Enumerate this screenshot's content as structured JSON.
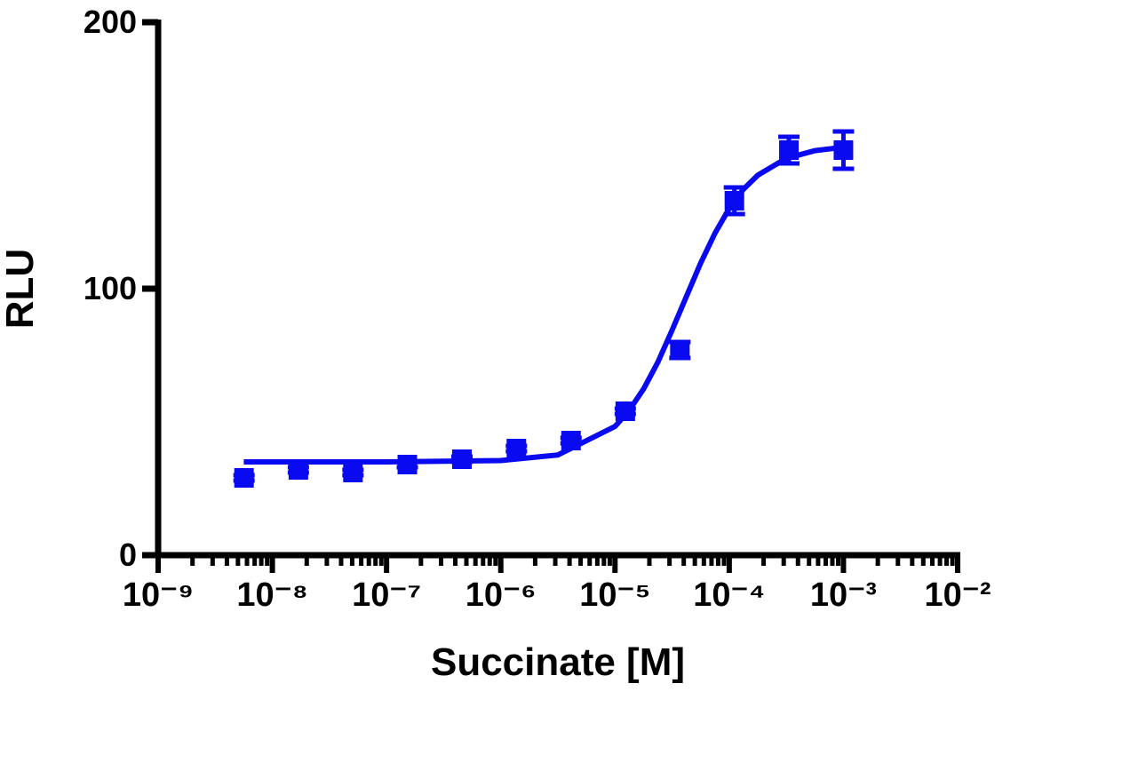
{
  "chart_data": {
    "type": "scatter",
    "xlabel": "Succinate [M]",
    "ylabel": "RLU",
    "xscale": "log",
    "minor_ticks": true,
    "xlim": [
      1e-09,
      0.01
    ],
    "ylim": [
      0,
      200
    ],
    "xticks": [
      {
        "value": 1e-09,
        "label": "10⁻⁹"
      },
      {
        "value": 1e-08,
        "label": "10⁻⁸"
      },
      {
        "value": 1e-07,
        "label": "10⁻⁷"
      },
      {
        "value": 1e-06,
        "label": "10⁻⁶"
      },
      {
        "value": 1e-05,
        "label": "10⁻⁵"
      },
      {
        "value": 0.0001,
        "label": "10⁻⁴"
      },
      {
        "value": 0.001,
        "label": "10⁻³"
      },
      {
        "value": 0.01,
        "label": "10⁻²"
      }
    ],
    "yticks": [
      0,
      100,
      200
    ],
    "series": [
      {
        "color": "#0a0af0",
        "x": [
          5.65e-09,
          1.69e-08,
          5.08e-08,
          1.52e-07,
          4.57e-07,
          1.37e-06,
          4.12e-06,
          1.23e-05,
          3.7e-05,
          0.000111,
          0.000333,
          0.001
        ],
        "values": [
          29,
          32,
          31,
          34,
          36,
          40,
          43,
          54,
          77,
          133,
          152,
          152
        ],
        "errors": [
          1,
          1,
          1,
          1,
          1,
          1,
          1,
          1,
          3,
          5,
          5,
          7
        ]
      }
    ],
    "fit": {
      "color": "#0a0af0",
      "x": [
        5.62e-09,
        1e-07,
        1e-06,
        3.16e-06,
        1e-05,
        1.33e-05,
        1.78e-05,
        2.37e-05,
        3.16e-05,
        4.22e-05,
        5.62e-05,
        7.5e-05,
        0.0001,
        0.000133,
        0.000178,
        0.000316,
        0.000562,
        0.001
      ],
      "values": [
        35.0,
        35.0,
        35.5,
        37.6,
        48.3,
        54.3,
        62.4,
        72.4,
        84.4,
        97.1,
        109.6,
        120.8,
        130.1,
        137.3,
        142.6,
        148.9,
        151.8,
        153.1
      ]
    }
  }
}
